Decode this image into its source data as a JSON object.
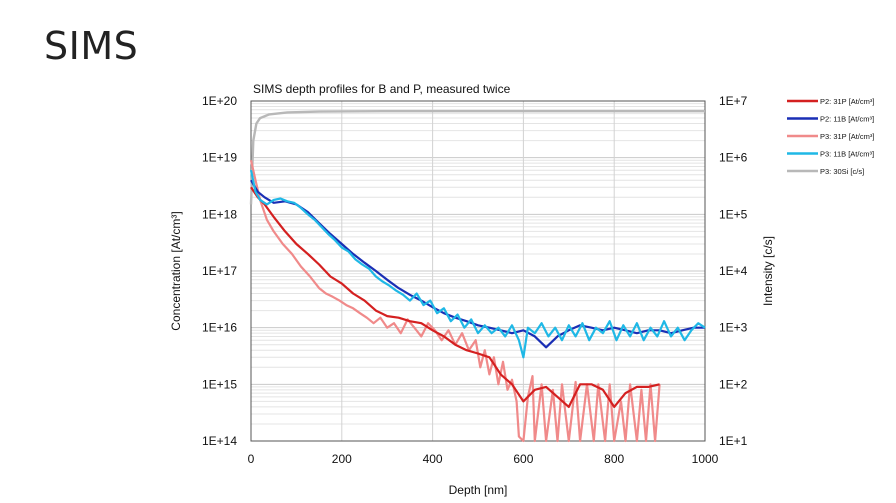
{
  "slide": {
    "title": "SIMS"
  },
  "chart_data": {
    "type": "line",
    "title": "SIMS depth profiles for B and P, measured twice",
    "xlabel": "Depth [nm]",
    "ylabel_left": "Concentration [At/cm³]",
    "ylabel_right": "Intensity [c/s]",
    "xlim": [
      0,
      1000
    ],
    "ylim_left_log10": [
      14,
      20
    ],
    "ylim_right_log10": [
      1,
      7
    ],
    "scale": "log",
    "grid": true,
    "legend_position": "right",
    "x_ticks": [
      "0",
      "200",
      "400",
      "600",
      "800",
      "1000"
    ],
    "y_ticks_left": [
      "1E+14",
      "1E+15",
      "1E+16",
      "1E+17",
      "1E+18",
      "1E+19",
      "1E+20"
    ],
    "y_ticks_right": [
      "1E+1",
      "1E+2",
      "1E+3",
      "1E+4",
      "1E+5",
      "1E+6",
      "1E+7"
    ],
    "series": [
      {
        "name": "P2: 31P [At/cm³]",
        "color": "#d42020",
        "width": 2.2,
        "axis": "left",
        "points": [
          [
            0,
            3e+18
          ],
          [
            15,
            2e+18
          ],
          [
            30,
            1.5e+18
          ],
          [
            50,
            9e+17
          ],
          [
            75,
            5e+17
          ],
          [
            100,
            3e+17
          ],
          [
            125,
            2e+17
          ],
          [
            150,
            1.3e+17
          ],
          [
            175,
            8e+16
          ],
          [
            200,
            6e+16
          ],
          [
            225,
            4e+16
          ],
          [
            250,
            3e+16
          ],
          [
            275,
            2e+16
          ],
          [
            300,
            1.6e+16
          ],
          [
            325,
            1.5e+16
          ],
          [
            350,
            1.3e+16
          ],
          [
            375,
            1.2e+16
          ],
          [
            400,
            9000000000000000.0
          ],
          [
            425,
            7000000000000000.0
          ],
          [
            450,
            5000000000000000.0
          ],
          [
            475,
            4000000000000000.0
          ],
          [
            500,
            3500000000000000.0
          ],
          [
            525,
            3000000000000000.0
          ],
          [
            550,
            1500000000000000.0
          ],
          [
            575,
            1000000000000000.0
          ],
          [
            600,
            500000000000000.0
          ],
          [
            625,
            800000000000000.0
          ],
          [
            650,
            900000000000000.0
          ],
          [
            675,
            600000000000000.0
          ],
          [
            700,
            400000000000000.0
          ],
          [
            725,
            1000000000000000.0
          ],
          [
            750,
            1000000000000000.0
          ],
          [
            775,
            800000000000000.0
          ],
          [
            800,
            400000000000000.0
          ],
          [
            825,
            700000000000000.0
          ],
          [
            850,
            900000000000000.0
          ],
          [
            875,
            900000000000000.0
          ],
          [
            900,
            1000000000000000.0
          ]
        ]
      },
      {
        "name": "P2: 11B [At/cm³]",
        "color": "#1a2fb5",
        "width": 2.2,
        "axis": "left",
        "points": [
          [
            0,
            4e+18
          ],
          [
            15,
            2.5e+18
          ],
          [
            30,
            2e+18
          ],
          [
            50,
            1.6e+18
          ],
          [
            75,
            1.7e+18
          ],
          [
            100,
            1.5e+18
          ],
          [
            125,
            1.1e+18
          ],
          [
            150,
            7e+17
          ],
          [
            175,
            4.5e+17
          ],
          [
            200,
            3e+17
          ],
          [
            225,
            2e+17
          ],
          [
            250,
            1.4e+17
          ],
          [
            275,
            1e+17
          ],
          [
            300,
            7e+16
          ],
          [
            325,
            5e+16
          ],
          [
            350,
            3.8e+16
          ],
          [
            375,
            3e+16
          ],
          [
            400,
            2.3e+16
          ],
          [
            425,
            1.8e+16
          ],
          [
            450,
            1.5e+16
          ],
          [
            475,
            1.3e+16
          ],
          [
            500,
            1.1e+16
          ],
          [
            525,
            1e+16
          ],
          [
            550,
            9000000000000000.0
          ],
          [
            575,
            8000000000000000.0
          ],
          [
            600,
            9000000000000000.0
          ],
          [
            625,
            7000000000000000.0
          ],
          [
            650,
            4500000000000000.0
          ],
          [
            675,
            7000000000000000.0
          ],
          [
            700,
            9000000000000000.0
          ],
          [
            725,
            1.1e+16
          ],
          [
            750,
            1e+16
          ],
          [
            775,
            9000000000000000.0
          ],
          [
            800,
            1e+16
          ],
          [
            825,
            9000000000000000.0
          ],
          [
            850,
            8000000000000000.0
          ],
          [
            875,
            9000000000000000.0
          ],
          [
            900,
            9000000000000000.0
          ],
          [
            925,
            8000000000000000.0
          ],
          [
            950,
            9000000000000000.0
          ],
          [
            975,
            1e+16
          ],
          [
            1000,
            1e+16
          ]
        ]
      },
      {
        "name": "P3: 31P [At/cm³]",
        "color": "#f08a8a",
        "width": 2.2,
        "axis": "left",
        "points": [
          [
            0,
            9e+18
          ],
          [
            10,
            4e+18
          ],
          [
            20,
            1.8e+18
          ],
          [
            35,
            8e+17
          ],
          [
            50,
            5e+17
          ],
          [
            70,
            3e+17
          ],
          [
            90,
            2e+17
          ],
          [
            110,
            1.2e+17
          ],
          [
            130,
            8e+16
          ],
          [
            150,
            5e+16
          ],
          [
            165,
            4e+16
          ],
          [
            180,
            3.5e+16
          ],
          [
            195,
            3e+16
          ],
          [
            210,
            2.5e+16
          ],
          [
            225,
            2.2e+16
          ],
          [
            240,
            1.8e+16
          ],
          [
            255,
            1.5e+16
          ],
          [
            270,
            1.2e+16
          ],
          [
            285,
            1.5e+16
          ],
          [
            300,
            1e+16
          ],
          [
            315,
            1.2e+16
          ],
          [
            330,
            8000000000000000.0
          ],
          [
            345,
            1.4e+16
          ],
          [
            360,
            1e+16
          ],
          [
            375,
            7000000000000000.0
          ],
          [
            390,
            1.2e+16
          ],
          [
            405,
            9000000000000000.0
          ],
          [
            420,
            6000000000000000.0
          ],
          [
            435,
            9000000000000000.0
          ],
          [
            450,
            5000000000000000.0
          ],
          [
            465,
            8000000000000000.0
          ],
          [
            480,
            4000000000000000.0
          ],
          [
            495,
            6000000000000000.0
          ],
          [
            505,
            2000000000000000.0
          ],
          [
            515,
            4000000000000000.0
          ],
          [
            525,
            1500000000000000.0
          ],
          [
            535,
            3000000000000000.0
          ],
          [
            545,
            1000000000000000.0
          ],
          [
            555,
            2500000000000000.0
          ],
          [
            565,
            800000000000000.0
          ],
          [
            575,
            1200000000000000.0
          ],
          [
            585,
            500000000000000.0
          ],
          [
            590,
            120000000000000.0
          ],
          [
            600,
            100000000000000.0
          ],
          [
            610,
            600000000000000.0
          ],
          [
            620,
            1400000000000000.0
          ],
          [
            625,
            100000000000000.0
          ],
          [
            640,
            1000000000000000.0
          ],
          [
            650,
            100000000000000.0
          ],
          [
            665,
            800000000000000.0
          ],
          [
            675,
            100000000000000.0
          ],
          [
            685,
            1000000000000000.0
          ],
          [
            700,
            100000000000000.0
          ],
          [
            715,
            1100000000000000.0
          ],
          [
            725,
            100000000000000.0
          ],
          [
            740,
            1000000000000000.0
          ],
          [
            755,
            100000000000000.0
          ],
          [
            765,
            1000000000000000.0
          ],
          [
            780,
            100000000000000.0
          ],
          [
            790,
            1000000000000000.0
          ],
          [
            800,
            100000000000000.0
          ],
          [
            815,
            500000000000000.0
          ],
          [
            825,
            100000000000000.0
          ],
          [
            835,
            1000000000000000.0
          ],
          [
            850,
            100000000000000.0
          ],
          [
            860,
            800000000000000.0
          ],
          [
            870,
            100000000000000.0
          ],
          [
            880,
            1000000000000000.0
          ],
          [
            890,
            100000000000000.0
          ],
          [
            900,
            1000000000000000.0
          ]
        ]
      },
      {
        "name": "P3: 11B [At/cm³]",
        "color": "#1fb8e6",
        "width": 2.2,
        "axis": "left",
        "points": [
          [
            0,
            6e+18
          ],
          [
            10,
            2.5e+18
          ],
          [
            20,
            1.8e+18
          ],
          [
            35,
            1.5e+18
          ],
          [
            50,
            1.8e+18
          ],
          [
            65,
            1.9e+18
          ],
          [
            80,
            1.7e+18
          ],
          [
            95,
            1.6e+18
          ],
          [
            110,
            1.3e+18
          ],
          [
            125,
            1e+18
          ],
          [
            140,
            8e+17
          ],
          [
            155,
            6e+17
          ],
          [
            170,
            4.5e+17
          ],
          [
            185,
            3.5e+17
          ],
          [
            200,
            2.6e+17
          ],
          [
            215,
            2.2e+17
          ],
          [
            230,
            1.6e+17
          ],
          [
            245,
            1.3e+17
          ],
          [
            260,
            1.1e+17
          ],
          [
            275,
            8e+16
          ],
          [
            290,
            6.5e+16
          ],
          [
            305,
            5.5e+16
          ],
          [
            320,
            4.5e+16
          ],
          [
            335,
            3.8e+16
          ],
          [
            350,
            3e+16
          ],
          [
            365,
            4e+16
          ],
          [
            380,
            2.5e+16
          ],
          [
            395,
            3e+16
          ],
          [
            410,
            1.8e+16
          ],
          [
            425,
            2.2e+16
          ],
          [
            440,
            1.3e+16
          ],
          [
            455,
            1.7e+16
          ],
          [
            470,
            1e+16
          ],
          [
            485,
            1.4e+16
          ],
          [
            500,
            8000000000000000.0
          ],
          [
            515,
            1.1e+16
          ],
          [
            530,
            8000000000000000.0
          ],
          [
            545,
            1e+16
          ],
          [
            560,
            7000000000000000.0
          ],
          [
            575,
            1.1e+16
          ],
          [
            590,
            6000000000000000.0
          ],
          [
            600,
            3000000000000000.0
          ],
          [
            610,
            1e+16
          ],
          [
            625,
            8000000000000000.0
          ],
          [
            640,
            1.2e+16
          ],
          [
            655,
            7000000000000000.0
          ],
          [
            670,
            1e+16
          ],
          [
            685,
            6000000000000000.0
          ],
          [
            700,
            1.1e+16
          ],
          [
            715,
            7000000000000000.0
          ],
          [
            730,
            1.2e+16
          ],
          [
            745,
            6000000000000000.0
          ],
          [
            760,
            1e+16
          ],
          [
            775,
            8000000000000000.0
          ],
          [
            790,
            1.3e+16
          ],
          [
            805,
            6000000000000000.0
          ],
          [
            820,
            1.1e+16
          ],
          [
            835,
            7000000000000000.0
          ],
          [
            850,
            1.2e+16
          ],
          [
            865,
            6000000000000000.0
          ],
          [
            880,
            1e+16
          ],
          [
            895,
            7000000000000000.0
          ],
          [
            910,
            1.3e+16
          ],
          [
            925,
            7000000000000000.0
          ],
          [
            940,
            1e+16
          ],
          [
            955,
            6000000000000000.0
          ],
          [
            970,
            9000000000000000.0
          ],
          [
            985,
            1.2e+16
          ],
          [
            1000,
            1e+16
          ]
        ]
      },
      {
        "name": "P3: 30Si [c/s]",
        "color": "#b8b8b8",
        "width": 2.4,
        "axis": "right",
        "points": [
          [
            0,
            150000.0
          ],
          [
            5,
            2000000.0
          ],
          [
            12,
            4000000.0
          ],
          [
            20,
            5000000.0
          ],
          [
            40,
            5800000.0
          ],
          [
            80,
            6300000.0
          ],
          [
            150,
            6500000.0
          ],
          [
            300,
            6600000.0
          ],
          [
            500,
            6600000.0
          ],
          [
            700,
            6600000.0
          ],
          [
            900,
            6600000.0
          ],
          [
            1000,
            6600000.0
          ]
        ]
      }
    ]
  }
}
